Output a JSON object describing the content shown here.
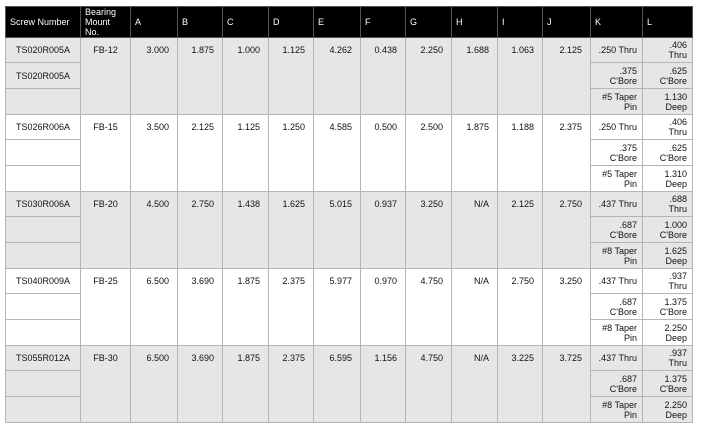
{
  "table": {
    "headers": [
      "Screw Number",
      "Bearing Mount No.",
      "A",
      "B",
      "C",
      "D",
      "E",
      "F",
      "G",
      "H",
      "I",
      "J",
      "K",
      "L"
    ],
    "groups": [
      {
        "screw_numbers": [
          "TS020R005A",
          "TS020R005A"
        ],
        "bearing_mount": "FB-12",
        "dims": [
          "3.000",
          "1.875",
          "1.000",
          "1.125",
          "4.262",
          "0.438",
          "2.250",
          "1.688",
          "1.063",
          "2.125"
        ],
        "k": [
          ".250 Thru",
          ".375 C'Bore",
          "#5 Taper Pin"
        ],
        "l": [
          ".406 Thru",
          ".625 C'Bore",
          "1.130 Deep"
        ]
      },
      {
        "screw_numbers": [
          "TS026R006A"
        ],
        "bearing_mount": "FB-15",
        "dims": [
          "3.500",
          "2.125",
          "1.125",
          "1.250",
          "4.585",
          "0.500",
          "2.500",
          "1.875",
          "1.188",
          "2.375"
        ],
        "k": [
          ".250 Thru",
          ".375 C'Bore",
          "#5 Taper Pin"
        ],
        "l": [
          ".406 Thru",
          ".625 C'Bore",
          "1.310 Deep"
        ]
      },
      {
        "screw_numbers": [
          "TS030R006A"
        ],
        "bearing_mount": "FB-20",
        "dims": [
          "4.500",
          "2.750",
          "1.438",
          "1.625",
          "5.015",
          "0.937",
          "3.250",
          "N/A",
          "2.125",
          "2.750"
        ],
        "k": [
          ".437 Thru",
          ".687 C'Bore",
          "#8 Taper Pin"
        ],
        "l": [
          ".688 Thru",
          "1.000 C'Bore",
          "1.625 Deep"
        ]
      },
      {
        "screw_numbers": [
          "TS040R009A"
        ],
        "bearing_mount": "FB-25",
        "dims": [
          "6.500",
          "3.690",
          "1.875",
          "2.375",
          "5.977",
          "0.970",
          "4.750",
          "N/A",
          "2.750",
          "3.250"
        ],
        "k": [
          ".437 Thru",
          ".687 C'Bore",
          "#8 Taper Pin"
        ],
        "l": [
          ".937 Thru",
          "1.375 C'Bore",
          "2.250 Deep"
        ]
      },
      {
        "screw_numbers": [
          "TS055R012A"
        ],
        "bearing_mount": "FB-30",
        "dims": [
          "6.500",
          "3.690",
          "1.875",
          "2.375",
          "6.595",
          "1.156",
          "4.750",
          "N/A",
          "3.225",
          "3.725"
        ],
        "k": [
          ".437 Thru",
          ".687 C'Bore",
          "#8 Taper Pin"
        ],
        "l": [
          ".937 Thru",
          "1.375 C'Bore",
          "2.250 Deep"
        ]
      }
    ]
  }
}
